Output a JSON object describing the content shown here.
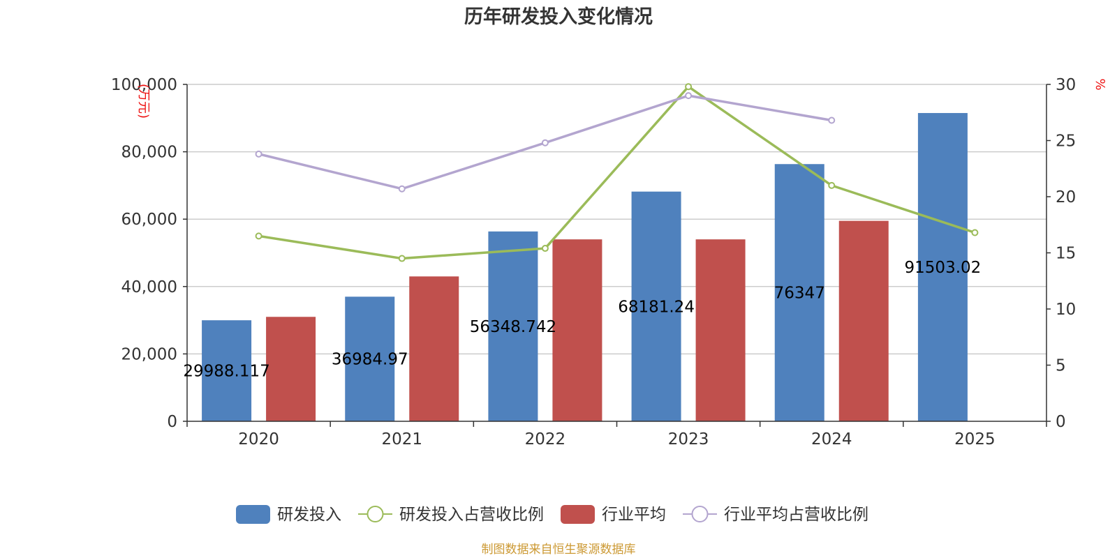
{
  "chart_data": {
    "type": "bar",
    "title": "历年研发投入变化情况",
    "categories": [
      "2020",
      "2021",
      "2022",
      "2023",
      "2024",
      "2025"
    ],
    "y_left": {
      "unit": "(万元)",
      "ylim": [
        0,
        100000
      ],
      "ticks": [
        "0",
        "20,000",
        "40,000",
        "60,000",
        "80,000",
        "100,000"
      ]
    },
    "y_right": {
      "unit": "%",
      "ylim": [
        0,
        30
      ],
      "ticks": [
        "0",
        "5",
        "10",
        "15",
        "20",
        "25",
        "30"
      ]
    },
    "series": [
      {
        "name": "研发投入",
        "kind": "bar",
        "axis": "left",
        "color": "#4f81bd",
        "values": [
          29988.117,
          36984.97,
          56348.742,
          68181.24,
          76347,
          91503.02
        ],
        "labels": [
          "29988.117",
          "36984.97",
          "56348.742",
          "68181.24",
          "76347",
          "91503.02"
        ]
      },
      {
        "name": "研发投入占营收比例",
        "kind": "line",
        "axis": "right",
        "color": "#9bbb59",
        "values": [
          16.5,
          14.5,
          15.4,
          29.8,
          21.0,
          16.8
        ]
      },
      {
        "name": "行业平均",
        "kind": "bar",
        "axis": "left",
        "color": "#c0504d",
        "values": [
          31000,
          43000,
          54000,
          54000,
          59500,
          null
        ]
      },
      {
        "name": "行业平均占营收比例",
        "kind": "line",
        "axis": "right",
        "color": "#b3a5cf",
        "values": [
          23.8,
          20.7,
          24.8,
          29.0,
          26.8,
          null
        ]
      }
    ],
    "grid": true,
    "legend": "bottom"
  },
  "source": "制图数据来自恒生聚源数据库"
}
